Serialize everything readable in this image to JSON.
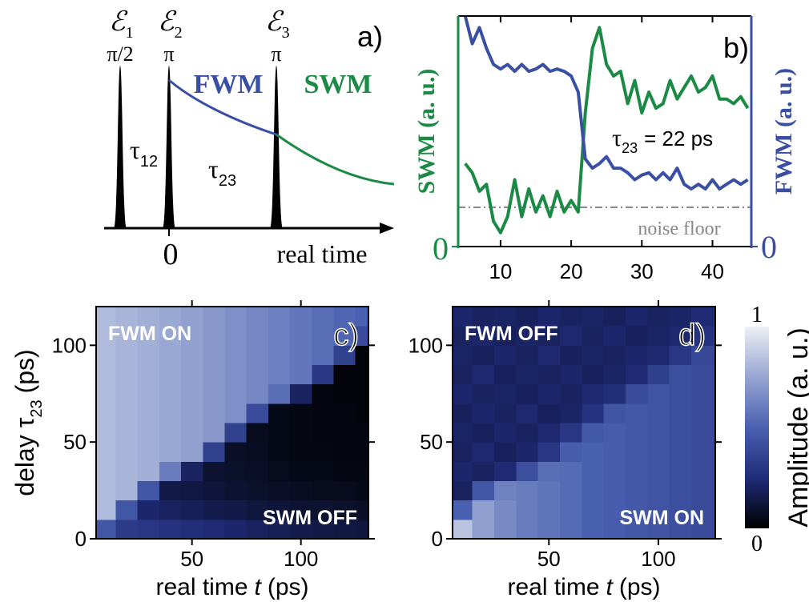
{
  "schematic": {
    "panel_label": "a)",
    "pulses": [
      {
        "symbol": "ℰ",
        "index": "1",
        "phase": "π/2"
      },
      {
        "symbol": "ℰ",
        "index": "2",
        "phase": "π"
      },
      {
        "symbol": "ℰ",
        "index": "3",
        "phase": "π"
      }
    ],
    "signals": [
      "FWM",
      "SWM"
    ],
    "delays": [
      {
        "symbol": "τ",
        "index": "12"
      },
      {
        "symbol": "τ",
        "index": "23"
      }
    ],
    "origin": "0",
    "axis_label": "real time"
  },
  "chart_data": [
    {
      "type": "line",
      "panel_label": "b)",
      "x": [
        5,
        6,
        7,
        8,
        9,
        10,
        11,
        12,
        13,
        14,
        15,
        16,
        17,
        18,
        19,
        20,
        21,
        22,
        23,
        24,
        25,
        26,
        27,
        28,
        29,
        30,
        31,
        32,
        33,
        34,
        35,
        36,
        37,
        38,
        39,
        40,
        41,
        42,
        43,
        44,
        45
      ],
      "xlim": [
        4,
        45.5
      ],
      "xticks": [
        10,
        20,
        30,
        40
      ],
      "ylim": [
        0,
        1
      ],
      "yticks": [
        0
      ],
      "y2lim": [
        0,
        1
      ],
      "y2ticks": [
        0
      ],
      "ylabel": "SWM (a. u.)",
      "y2label": "FWM (a. u.)",
      "series": [
        {
          "color": "#1a8a45",
          "values": [
            0.36,
            0.32,
            0.24,
            0.27,
            0.11,
            0.06,
            0.13,
            0.29,
            0.13,
            0.25,
            0.15,
            0.22,
            0.13,
            0.24,
            0.15,
            0.2,
            0.15,
            0.58,
            0.86,
            0.95,
            0.79,
            0.74,
            0.76,
            0.62,
            0.72,
            0.58,
            0.67,
            0.6,
            0.62,
            0.72,
            0.64,
            0.69,
            0.74,
            0.67,
            0.69,
            0.74,
            0.64,
            0.64,
            0.62,
            0.65,
            0.6
          ]
        },
        {
          "color": "#3a4fa3",
          "axis": "y2",
          "values": [
            1.0,
            0.88,
            0.95,
            0.86,
            0.79,
            0.77,
            0.79,
            0.76,
            0.79,
            0.76,
            0.77,
            0.79,
            0.76,
            0.77,
            0.76,
            0.74,
            0.67,
            0.38,
            0.34,
            0.36,
            0.39,
            0.34,
            0.34,
            0.32,
            0.29,
            0.31,
            0.32,
            0.29,
            0.32,
            0.29,
            0.34,
            0.27,
            0.25,
            0.27,
            0.25,
            0.29,
            0.25,
            0.27,
            0.29,
            0.27,
            0.29
          ]
        }
      ],
      "annotation": {
        "symbol": "τ",
        "index": "23",
        "text": "= 22 ps"
      },
      "noise_floor": {
        "value": 0.17,
        "label": "noise floor"
      }
    },
    {
      "type": "heatmap",
      "panel_label": "c)",
      "x": [
        10,
        20,
        30,
        40,
        50,
        60,
        70,
        80,
        90,
        100,
        110,
        120,
        130
      ],
      "y": [
        5,
        15,
        25,
        35,
        45,
        55,
        65,
        75,
        85,
        95,
        105,
        115
      ],
      "values": [
        [
          0.45,
          0.32,
          0.3,
          0.28,
          0.26,
          0.24,
          0.22,
          0.2,
          0.18,
          0.16,
          0.15,
          0.14,
          0.13
        ],
        [
          0.82,
          0.45,
          0.22,
          0.2,
          0.18,
          0.16,
          0.15,
          0.13,
          0.12,
          0.1,
          0.1,
          0.09,
          0.08
        ],
        [
          0.82,
          0.8,
          0.45,
          0.15,
          0.14,
          0.12,
          0.1,
          0.09,
          0.08,
          0.07,
          0.06,
          0.06,
          0.05
        ],
        [
          0.82,
          0.8,
          0.78,
          0.6,
          0.2,
          0.1,
          0.09,
          0.08,
          0.06,
          0.05,
          0.05,
          0.04,
          0.04
        ],
        [
          0.82,
          0.8,
          0.78,
          0.76,
          0.73,
          0.35,
          0.08,
          0.07,
          0.05,
          0.04,
          0.04,
          0.03,
          0.03
        ],
        [
          0.82,
          0.8,
          0.78,
          0.76,
          0.73,
          0.7,
          0.35,
          0.06,
          0.05,
          0.04,
          0.03,
          0.03,
          0.03
        ],
        [
          0.82,
          0.8,
          0.78,
          0.76,
          0.73,
          0.7,
          0.67,
          0.4,
          0.05,
          0.04,
          0.03,
          0.03,
          0.02
        ],
        [
          0.82,
          0.8,
          0.78,
          0.76,
          0.73,
          0.7,
          0.67,
          0.64,
          0.55,
          0.2,
          0.03,
          0.02,
          0.02
        ],
        [
          0.82,
          0.8,
          0.78,
          0.76,
          0.73,
          0.7,
          0.67,
          0.64,
          0.61,
          0.58,
          0.3,
          0.02,
          0.02
        ],
        [
          0.82,
          0.8,
          0.78,
          0.76,
          0.73,
          0.7,
          0.67,
          0.64,
          0.61,
          0.58,
          0.55,
          0.35,
          0.02
        ],
        [
          0.82,
          0.8,
          0.78,
          0.76,
          0.73,
          0.7,
          0.67,
          0.64,
          0.61,
          0.58,
          0.55,
          0.52,
          0.4
        ],
        [
          0.82,
          0.8,
          0.78,
          0.76,
          0.73,
          0.7,
          0.67,
          0.64,
          0.61,
          0.58,
          0.55,
          0.52,
          0.5
        ]
      ],
      "xlim": [
        6,
        131
      ],
      "ylim": [
        0,
        120
      ],
      "xticks": [
        50,
        100
      ],
      "yticks": [
        0,
        50,
        100
      ],
      "xlabel": [
        "real time",
        "t",
        "(ps)"
      ],
      "ylabel": [
        "delay τ",
        "23",
        "(ps)"
      ],
      "annotations": [
        "FWM ON",
        "SWM OFF"
      ],
      "colorscale": [
        "#000000",
        "#1f2c78",
        "#4a60b0",
        "#97a6d2",
        "#eef0f5"
      ]
    },
    {
      "type": "heatmap",
      "panel_label": "d)",
      "x": [
        10,
        20,
        30,
        40,
        50,
        60,
        70,
        80,
        90,
        100,
        110,
        120,
        130
      ],
      "y": [
        5,
        15,
        25,
        35,
        45,
        55,
        65,
        75,
        85,
        95,
        105,
        115
      ],
      "values": [
        [
          0.85,
          0.72,
          0.65,
          0.6,
          0.57,
          0.54,
          0.5,
          0.48,
          0.46,
          0.44,
          0.42,
          0.4,
          0.38
        ],
        [
          0.5,
          0.72,
          0.65,
          0.6,
          0.57,
          0.54,
          0.5,
          0.48,
          0.46,
          0.44,
          0.42,
          0.4,
          0.38
        ],
        [
          0.2,
          0.45,
          0.62,
          0.6,
          0.57,
          0.54,
          0.5,
          0.48,
          0.46,
          0.44,
          0.42,
          0.4,
          0.38
        ],
        [
          0.22,
          0.2,
          0.24,
          0.42,
          0.55,
          0.54,
          0.5,
          0.48,
          0.46,
          0.44,
          0.42,
          0.4,
          0.38
        ],
        [
          0.2,
          0.23,
          0.19,
          0.22,
          0.3,
          0.48,
          0.5,
          0.48,
          0.46,
          0.44,
          0.42,
          0.4,
          0.38
        ],
        [
          0.21,
          0.19,
          0.22,
          0.2,
          0.23,
          0.3,
          0.46,
          0.48,
          0.46,
          0.44,
          0.42,
          0.4,
          0.38
        ],
        [
          0.19,
          0.22,
          0.2,
          0.23,
          0.19,
          0.21,
          0.28,
          0.44,
          0.46,
          0.44,
          0.42,
          0.4,
          0.38
        ],
        [
          0.22,
          0.2,
          0.21,
          0.19,
          0.22,
          0.2,
          0.23,
          0.26,
          0.4,
          0.44,
          0.42,
          0.4,
          0.38
        ],
        [
          0.2,
          0.23,
          0.19,
          0.21,
          0.2,
          0.22,
          0.19,
          0.21,
          0.24,
          0.34,
          0.42,
          0.4,
          0.38
        ],
        [
          0.21,
          0.19,
          0.22,
          0.2,
          0.23,
          0.19,
          0.21,
          0.2,
          0.22,
          0.23,
          0.3,
          0.38,
          0.38
        ],
        [
          0.2,
          0.22,
          0.19,
          0.21,
          0.2,
          0.23,
          0.2,
          0.22,
          0.19,
          0.21,
          0.23,
          0.28,
          0.34
        ],
        [
          0.22,
          0.2,
          0.21,
          0.19,
          0.22,
          0.2,
          0.21,
          0.19,
          0.22,
          0.2,
          0.21,
          0.24,
          0.27
        ]
      ],
      "xlim": [
        6,
        126
      ],
      "ylim": [
        0,
        120
      ],
      "xticks": [
        50,
        100
      ],
      "yticks": [
        0,
        50,
        100
      ],
      "xlabel": [
        "real time",
        "t",
        "(ps)"
      ],
      "annotations": [
        "FWM OFF",
        "SWM ON"
      ],
      "colorscale": [
        "#000000",
        "#1f2c78",
        "#4a60b0",
        "#97a6d2",
        "#eef0f5"
      ],
      "colorbar": {
        "label": "Amplitude (a. u.)",
        "clim": [
          0,
          1
        ],
        "ticks": [
          0,
          1
        ]
      }
    }
  ]
}
